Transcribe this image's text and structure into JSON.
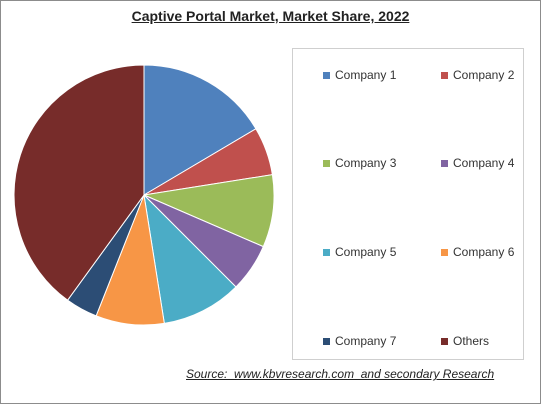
{
  "chart_data": {
    "type": "pie",
    "title": "Captive Portal Market, Market Share, 2022",
    "labels": [
      "Company 1",
      "Company 2",
      "Company 3",
      "Company 4",
      "Company 5",
      "Company 6",
      "Company 7",
      "Others"
    ],
    "values": [
      16.5,
      6,
      9,
      6,
      10,
      8.5,
      4,
      40
    ],
    "colors": [
      "#4f81bd",
      "#c0504d",
      "#9bbb59",
      "#8064a2",
      "#4bacc6",
      "#f79646",
      "#2c4d75",
      "#772c2a"
    ],
    "legend_position": "right"
  },
  "source": "Source:  www.kbvresearch.com  and secondary Research"
}
